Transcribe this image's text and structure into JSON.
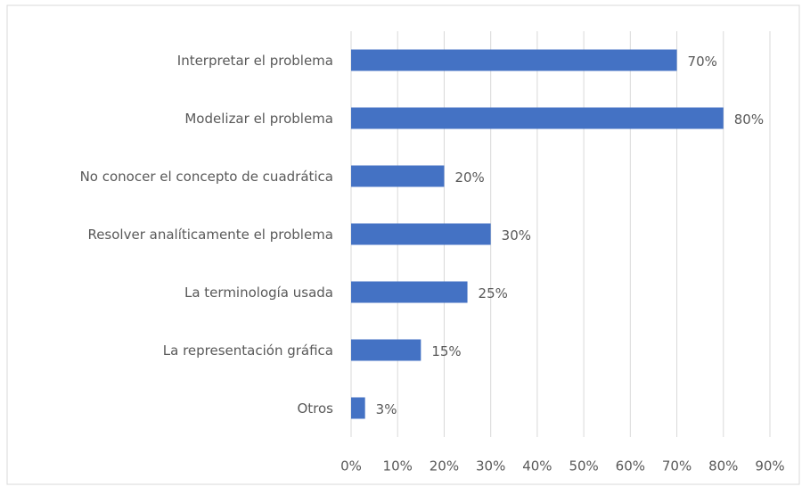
{
  "chart_data": {
    "type": "barh",
    "categories": [
      "Interpretar el problema",
      "Modelizar el problema",
      "No conocer el concepto de cuadrática",
      "Resolver analíticamente el problema",
      "La terminología usada",
      "La representación gráfica",
      "Otros"
    ],
    "values": [
      70,
      80,
      20,
      30,
      25,
      15,
      3
    ],
    "value_labels": [
      "70%",
      "80%",
      "20%",
      "30%",
      "25%",
      "15%",
      "3%"
    ],
    "color": "#4472c4",
    "xlim": [
      0,
      90
    ],
    "xticks": [
      {
        "value": 0,
        "label": "0%"
      },
      {
        "value": 10,
        "label": "10%"
      },
      {
        "value": 20,
        "label": "20%"
      },
      {
        "value": 30,
        "label": "30%"
      },
      {
        "value": 40,
        "label": "40%"
      },
      {
        "value": 50,
        "label": "50%"
      },
      {
        "value": 60,
        "label": "60%"
      },
      {
        "value": 70,
        "label": "70%"
      },
      {
        "value": 80,
        "label": "80%"
      },
      {
        "value": 90,
        "label": "90%"
      }
    ],
    "grid": true
  }
}
